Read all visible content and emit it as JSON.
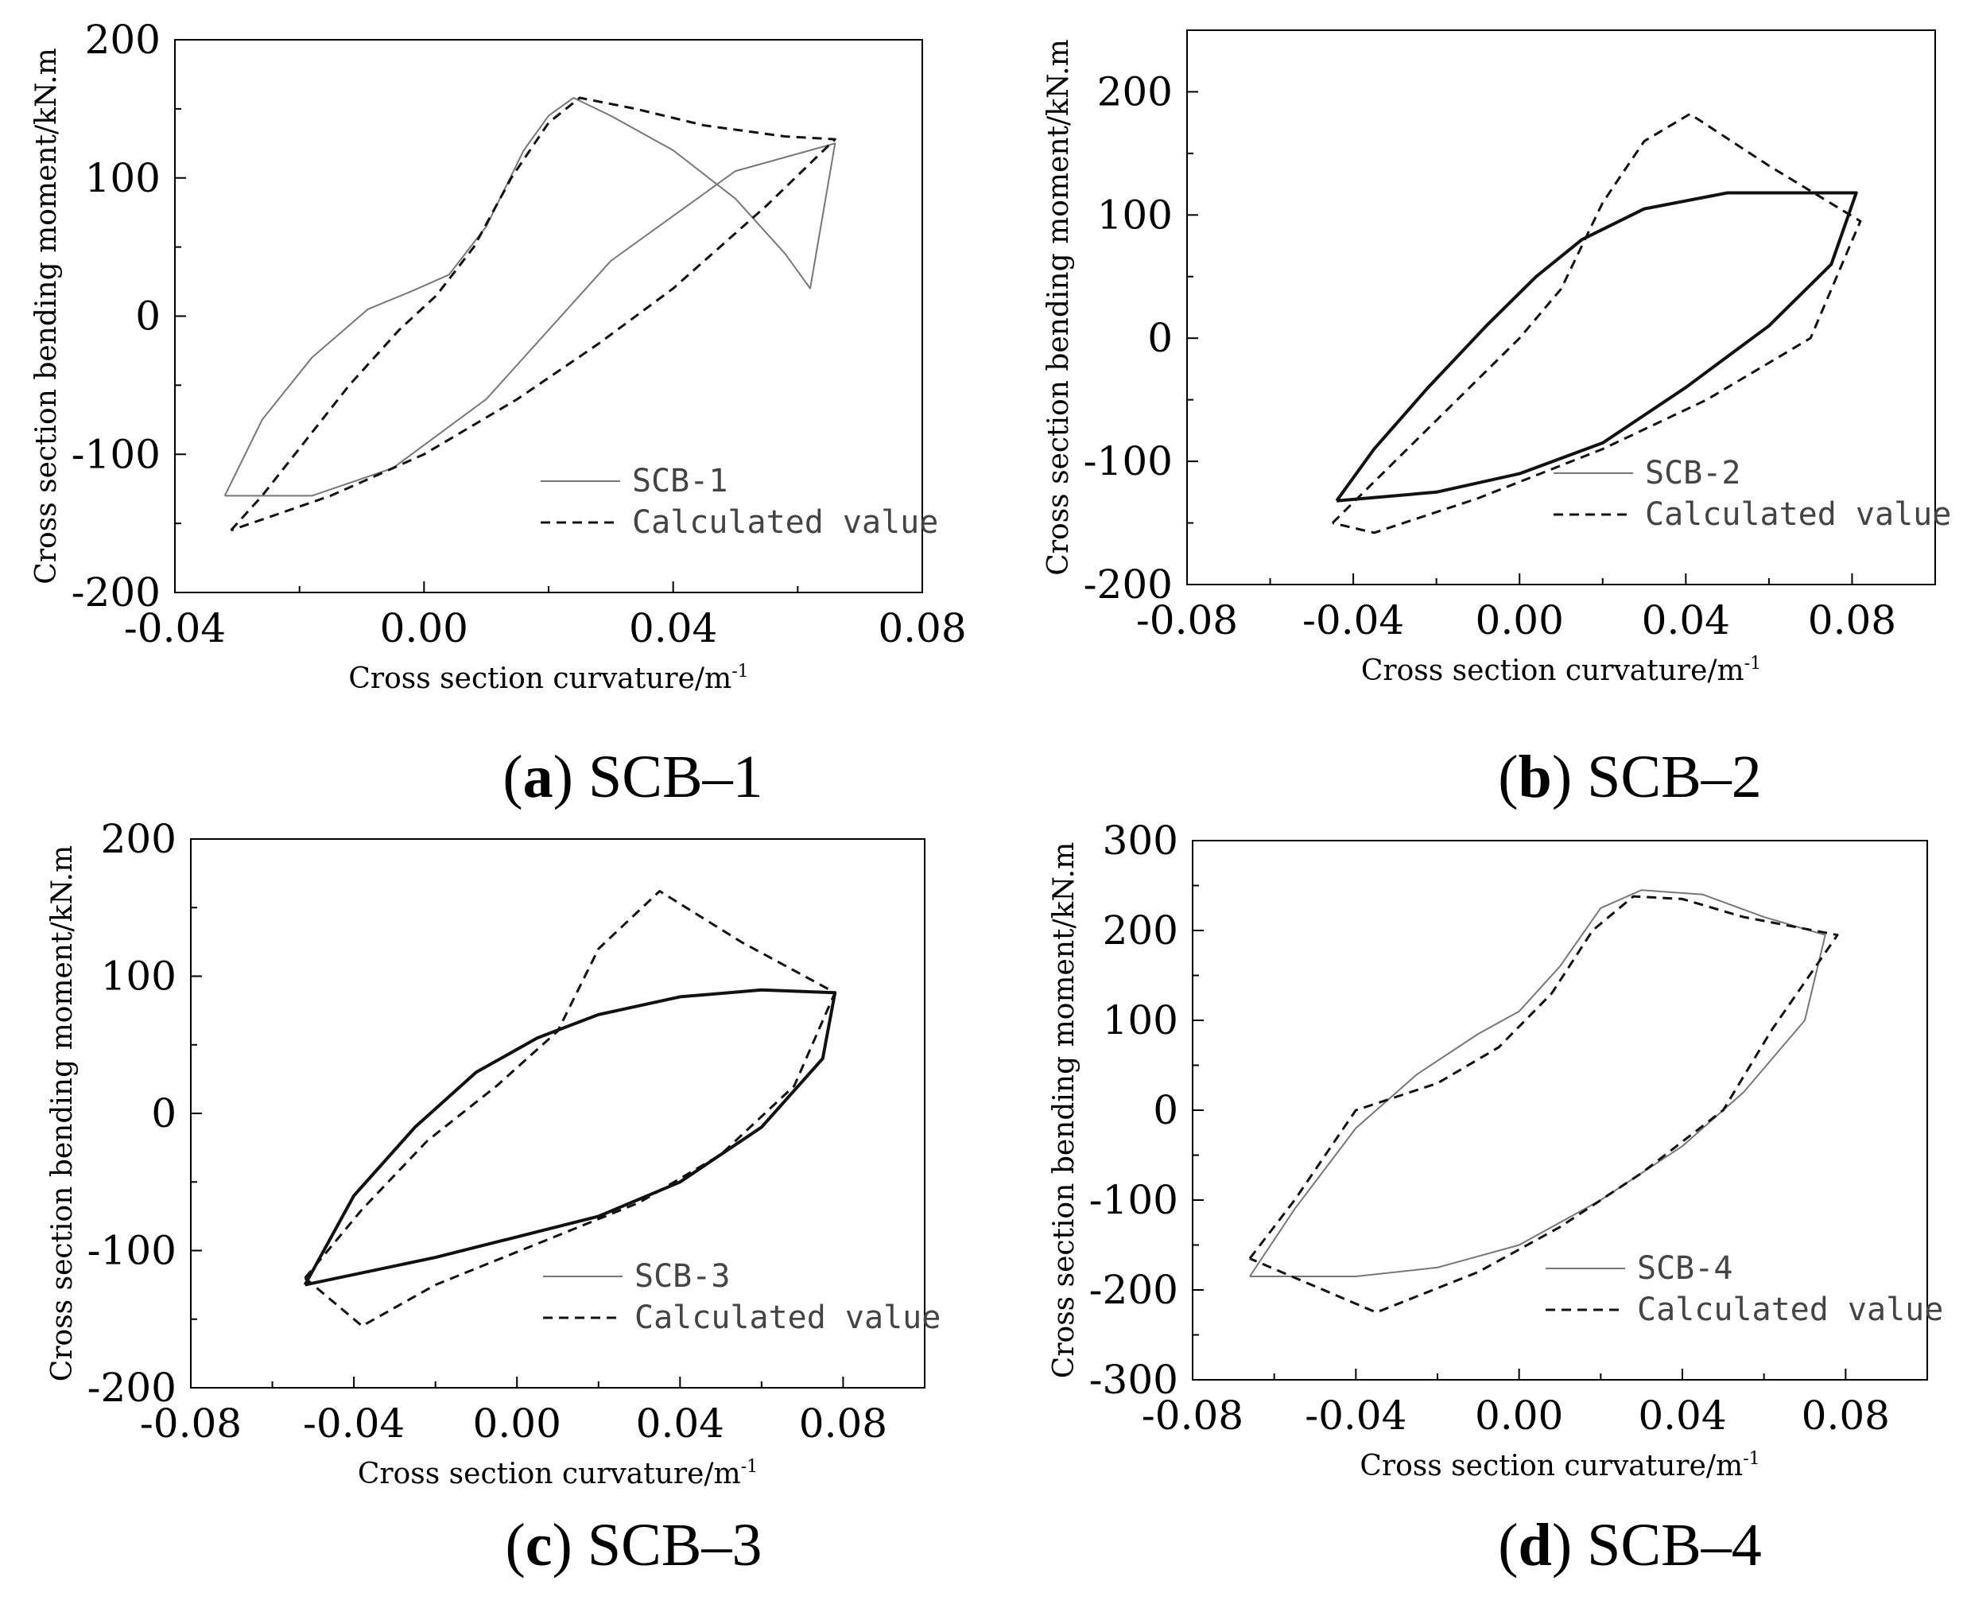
{
  "figure": {
    "background": "#ffffff"
  },
  "colors": {
    "axis": "#000000",
    "measured": "#777777",
    "calculated": "#111111"
  },
  "chart_data": [
    {
      "type": "line",
      "panel": "a",
      "caption_letter": "a",
      "caption_text": "SCB–1",
      "specimen": "SCB-1",
      "xlabel": "Cross section curvature/m",
      "xlabel_sup": "-1",
      "ylabel": "Cross section bending moment/kN.m",
      "xlim": [
        -0.04,
        0.08
      ],
      "ylim": [
        -200,
        200
      ],
      "xticks": [
        -0.04,
        0.0,
        0.04,
        0.08
      ],
      "xtick_labels": [
        "-0.04",
        "0.00",
        "0.04",
        "0.08"
      ],
      "yticks": [
        -200,
        -100,
        0,
        100,
        200
      ],
      "ytick_labels": [
        "-200",
        "-100",
        "0",
        "100",
        "200"
      ],
      "legend": {
        "position": "lower-right",
        "entries": [
          "SCB-1",
          "Calculated value"
        ]
      },
      "series": [
        {
          "name": "SCB-1",
          "style": "solid-thin",
          "points": [
            [
              -0.032,
              -130
            ],
            [
              -0.026,
              -75
            ],
            [
              -0.018,
              -30
            ],
            [
              -0.009,
              5
            ],
            [
              -0.002,
              18
            ],
            [
              0.004,
              30
            ],
            [
              0.01,
              65
            ],
            [
              0.016,
              120
            ],
            [
              0.02,
              145
            ],
            [
              0.024,
              158
            ],
            [
              0.03,
              145
            ],
            [
              0.04,
              120
            ],
            [
              0.05,
              85
            ],
            [
              0.058,
              45
            ],
            [
              0.062,
              20
            ],
            [
              0.066,
              125
            ],
            [
              0.05,
              105
            ],
            [
              0.03,
              40
            ],
            [
              0.01,
              -60
            ],
            [
              -0.005,
              -110
            ],
            [
              -0.018,
              -130
            ],
            [
              -0.032,
              -130
            ]
          ]
        },
        {
          "name": "Calculated value",
          "style": "dashed",
          "points": [
            [
              -0.031,
              -155
            ],
            [
              -0.026,
              -130
            ],
            [
              -0.019,
              -90
            ],
            [
              -0.012,
              -50
            ],
            [
              -0.004,
              -10
            ],
            [
              0.002,
              15
            ],
            [
              0.008,
              50
            ],
            [
              0.014,
              100
            ],
            [
              0.02,
              140
            ],
            [
              0.025,
              158
            ],
            [
              0.034,
              150
            ],
            [
              0.045,
              138
            ],
            [
              0.058,
              130
            ],
            [
              0.066,
              128
            ],
            [
              0.055,
              80
            ],
            [
              0.04,
              20
            ],
            [
              0.028,
              -20
            ],
            [
              0.015,
              -60
            ],
            [
              0.0,
              -100
            ],
            [
              -0.015,
              -130
            ],
            [
              -0.031,
              -155
            ]
          ]
        }
      ]
    },
    {
      "type": "line",
      "panel": "b",
      "caption_letter": "b",
      "caption_text": "SCB–2",
      "specimen": "SCB-2",
      "xlabel": "Cross section curvature/m",
      "xlabel_sup": "-1",
      "ylabel": "Cross section bending moment/kN.m",
      "xlim": [
        -0.08,
        0.1
      ],
      "ylim": [
        -200,
        250
      ],
      "xticks": [
        -0.08,
        -0.04,
        0.0,
        0.04,
        0.08
      ],
      "xtick_labels": [
        "-0.08",
        "-0.04",
        "0.00",
        "0.04",
        "0.08"
      ],
      "yticks": [
        -200,
        -100,
        0,
        100,
        200
      ],
      "ytick_labels": [
        "-200",
        "-100",
        "0",
        "100",
        "200"
      ],
      "legend": {
        "position": "lower-right",
        "entries": [
          "SCB-2",
          "Calculated value"
        ]
      },
      "series": [
        {
          "name": "SCB-2",
          "style": "solid-thick",
          "points": [
            [
              -0.044,
              -132
            ],
            [
              -0.035,
              -90
            ],
            [
              -0.022,
              -40
            ],
            [
              -0.008,
              10
            ],
            [
              0.004,
              50
            ],
            [
              0.015,
              80
            ],
            [
              0.03,
              105
            ],
            [
              0.05,
              118
            ],
            [
              0.081,
              118
            ],
            [
              0.075,
              60
            ],
            [
              0.06,
              10
            ],
            [
              0.04,
              -40
            ],
            [
              0.02,
              -85
            ],
            [
              0.0,
              -110
            ],
            [
              -0.02,
              -125
            ],
            [
              -0.044,
              -132
            ]
          ]
        },
        {
          "name": "Calculated value",
          "style": "dashed",
          "points": [
            [
              -0.045,
              -150
            ],
            [
              -0.03,
              -100
            ],
            [
              -0.015,
              -50
            ],
            [
              0.0,
              0
            ],
            [
              0.01,
              40
            ],
            [
              0.02,
              110
            ],
            [
              0.03,
              160
            ],
            [
              0.041,
              182
            ],
            [
              0.06,
              140
            ],
            [
              0.082,
              95
            ],
            [
              0.07,
              0
            ],
            [
              0.045,
              -50
            ],
            [
              0.02,
              -90
            ],
            [
              -0.01,
              -130
            ],
            [
              -0.035,
              -158
            ],
            [
              -0.045,
              -150
            ]
          ]
        }
      ]
    },
    {
      "type": "line",
      "panel": "c",
      "caption_letter": "c",
      "caption_text": "SCB–3",
      "specimen": "SCB-3",
      "xlabel": "Cross section curvature/m",
      "xlabel_sup": "-1",
      "ylabel": "Cross section bending moment/kN.m",
      "xlim": [
        -0.08,
        0.1
      ],
      "ylim": [
        -200,
        200
      ],
      "xticks": [
        -0.08,
        -0.04,
        0.0,
        0.04,
        0.08
      ],
      "xtick_labels": [
        "-0.08",
        "-0.04",
        "0.00",
        "0.04",
        "0.08"
      ],
      "yticks": [
        -200,
        -100,
        0,
        100,
        200
      ],
      "ytick_labels": [
        "-200",
        "-100",
        "0",
        "100",
        "200"
      ],
      "legend": {
        "position": "lower-right",
        "entries": [
          "SCB-3",
          "Calculated value"
        ]
      },
      "series": [
        {
          "name": "SCB-3",
          "style": "solid-thick",
          "points": [
            [
              -0.052,
              -125
            ],
            [
              -0.04,
              -60
            ],
            [
              -0.025,
              -10
            ],
            [
              -0.01,
              30
            ],
            [
              0.005,
              55
            ],
            [
              0.02,
              72
            ],
            [
              0.04,
              85
            ],
            [
              0.06,
              90
            ],
            [
              0.078,
              88
            ],
            [
              0.075,
              40
            ],
            [
              0.06,
              -10
            ],
            [
              0.04,
              -50
            ],
            [
              0.02,
              -75
            ],
            [
              0.0,
              -90
            ],
            [
              -0.02,
              -105
            ],
            [
              -0.052,
              -125
            ]
          ]
        },
        {
          "name": "Calculated value",
          "style": "dashed",
          "points": [
            [
              -0.052,
              -120
            ],
            [
              -0.038,
              -70
            ],
            [
              -0.022,
              -20
            ],
            [
              -0.005,
              20
            ],
            [
              0.01,
              60
            ],
            [
              0.02,
              120
            ],
            [
              0.035,
              162
            ],
            [
              0.055,
              125
            ],
            [
              0.078,
              88
            ],
            [
              0.068,
              20
            ],
            [
              0.05,
              -30
            ],
            [
              0.03,
              -65
            ],
            [
              0.005,
              -95
            ],
            [
              -0.02,
              -125
            ],
            [
              -0.038,
              -155
            ],
            [
              -0.052,
              -120
            ]
          ]
        }
      ]
    },
    {
      "type": "line",
      "panel": "d",
      "caption_letter": "d",
      "caption_text": "SCB–4",
      "specimen": "SCB-4",
      "xlabel": "Cross section curvature/m",
      "xlabel_sup": "-1",
      "ylabel": "Cross section bending moment/kN.m",
      "xlim": [
        -0.08,
        0.1
      ],
      "ylim": [
        -300,
        300
      ],
      "xticks": [
        -0.08,
        -0.04,
        0.0,
        0.04,
        0.08
      ],
      "xtick_labels": [
        "-0.08",
        "-0.04",
        "0.00",
        "0.04",
        "0.08"
      ],
      "yticks": [
        -300,
        -200,
        -100,
        0,
        100,
        200,
        300
      ],
      "ytick_labels": [
        "-300",
        "-200",
        "-100",
        "0",
        "100",
        "200",
        "300"
      ],
      "legend": {
        "position": "lower-right",
        "entries": [
          "SCB-4",
          "Calculated value"
        ]
      },
      "series": [
        {
          "name": "SCB-4",
          "style": "solid-thin",
          "points": [
            [
              -0.066,
              -185
            ],
            [
              -0.055,
              -110
            ],
            [
              -0.04,
              -20
            ],
            [
              -0.025,
              40
            ],
            [
              -0.01,
              85
            ],
            [
              0.0,
              110
            ],
            [
              0.01,
              160
            ],
            [
              0.02,
              225
            ],
            [
              0.03,
              245
            ],
            [
              0.045,
              240
            ],
            [
              0.06,
              215
            ],
            [
              0.075,
              195
            ],
            [
              0.07,
              100
            ],
            [
              0.055,
              20
            ],
            [
              0.04,
              -40
            ],
            [
              0.02,
              -100
            ],
            [
              0.0,
              -150
            ],
            [
              -0.02,
              -175
            ],
            [
              -0.04,
              -185
            ],
            [
              -0.066,
              -185
            ]
          ]
        },
        {
          "name": "Calculated value",
          "style": "dashed",
          "points": [
            [
              -0.066,
              -165
            ],
            [
              -0.055,
              -100
            ],
            [
              -0.04,
              0
            ],
            [
              -0.02,
              30
            ],
            [
              -0.005,
              70
            ],
            [
              0.008,
              130
            ],
            [
              0.018,
              200
            ],
            [
              0.028,
              238
            ],
            [
              0.04,
              235
            ],
            [
              0.055,
              215
            ],
            [
              0.078,
              195
            ],
            [
              0.062,
              90
            ],
            [
              0.05,
              0
            ],
            [
              0.03,
              -70
            ],
            [
              0.01,
              -130
            ],
            [
              -0.01,
              -180
            ],
            [
              -0.035,
              -225
            ],
            [
              -0.066,
              -165
            ]
          ]
        }
      ]
    }
  ]
}
